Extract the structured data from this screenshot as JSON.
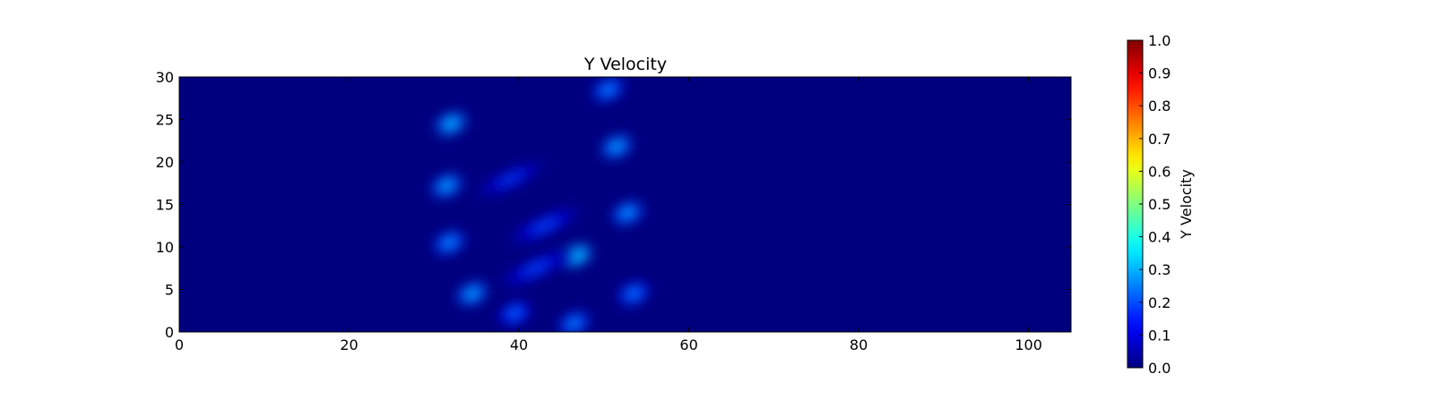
{
  "chart_data": {
    "type": "heatmap",
    "title": "Y Velocity",
    "xlabel": "",
    "ylabel": "",
    "xlim": [
      0,
      105
    ],
    "ylim": [
      0,
      30
    ],
    "x_ticks": [
      0,
      20,
      40,
      60,
      80,
      100
    ],
    "y_ticks": [
      0,
      5,
      10,
      15,
      20,
      25,
      30
    ],
    "grid": false,
    "colormap": "jet",
    "background_color": "#00007f",
    "colorbar": {
      "label": "Y Velocity",
      "range": [
        0.0,
        1.0
      ],
      "ticks": [
        "0.0",
        "0.1",
        "0.2",
        "0.3",
        "0.4",
        "0.5",
        "0.6",
        "0.7",
        "0.8",
        "0.9",
        "1.0"
      ],
      "placement": "right"
    },
    "blobs": [
      {
        "x": 32,
        "y": 24.5,
        "value": 0.22
      },
      {
        "x": 31.5,
        "y": 17.2,
        "value": 0.2
      },
      {
        "x": 31.8,
        "y": 10.5,
        "value": 0.18
      },
      {
        "x": 34.5,
        "y": 4.5,
        "value": 0.2
      },
      {
        "x": 39.5,
        "y": 2.2,
        "value": 0.14
      },
      {
        "x": 46.5,
        "y": 1.0,
        "value": 0.17
      },
      {
        "x": 50.5,
        "y": 28.5,
        "value": 0.17
      },
      {
        "x": 51.5,
        "y": 21.8,
        "value": 0.2
      },
      {
        "x": 52.8,
        "y": 14.0,
        "value": 0.19
      },
      {
        "x": 46.8,
        "y": 9.0,
        "value": 0.24
      },
      {
        "x": 53.5,
        "y": 4.5,
        "value": 0.16
      },
      {
        "x": 43.0,
        "y": 12.5,
        "value": 0.09
      },
      {
        "x": 39.0,
        "y": 18.0,
        "value": 0.07
      },
      {
        "x": 42.0,
        "y": 7.5,
        "value": 0.09
      }
    ]
  }
}
